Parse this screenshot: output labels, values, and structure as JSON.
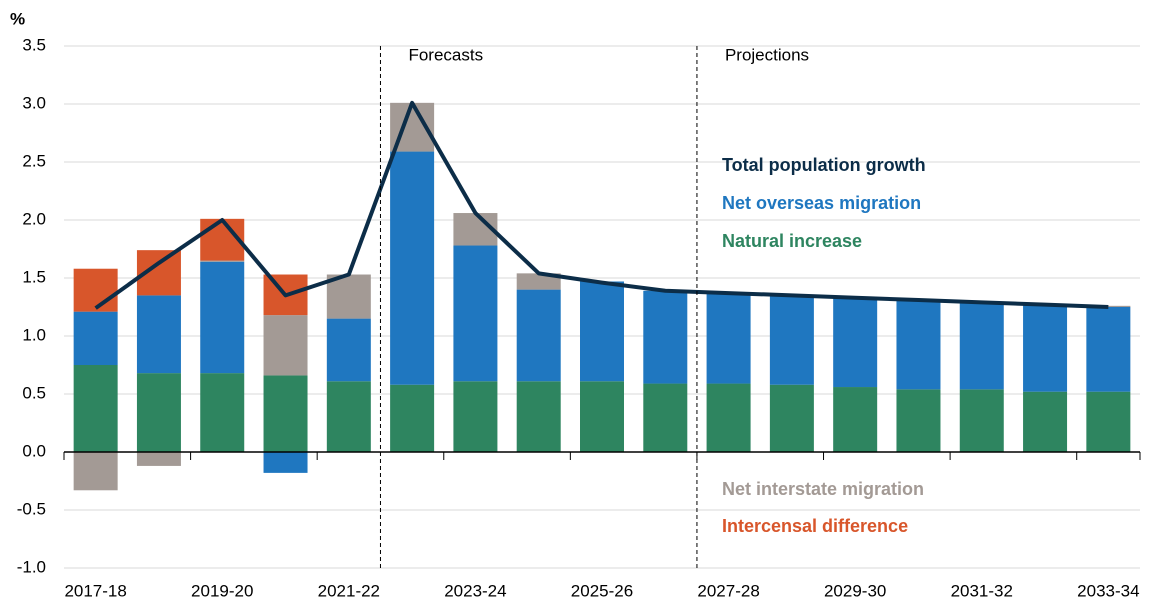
{
  "chart_data": {
    "type": "bar",
    "stacked": true,
    "y_label": "%",
    "categories": [
      "2017-18",
      null,
      "2019-20",
      null,
      "2021-22",
      null,
      "2023-24",
      null,
      "2025-26",
      null,
      "2027-28",
      null,
      "2029-30",
      null,
      "2031-32",
      null,
      "2033-34"
    ],
    "series": [
      {
        "name": "Natural increase",
        "color": "#2e8560",
        "values": [
          0.75,
          0.68,
          0.68,
          0.66,
          0.61,
          0.58,
          0.61,
          0.61,
          0.61,
          0.59,
          0.59,
          0.58,
          0.56,
          0.54,
          0.54,
          0.52,
          0.52
        ]
      },
      {
        "name": "Net overseas migration",
        "color": "#1f77c0",
        "values": [
          0.46,
          0.67,
          0.96,
          -0.18,
          0.54,
          2.01,
          1.17,
          0.79,
          0.86,
          0.8,
          0.78,
          0.77,
          0.77,
          0.77,
          0.75,
          0.75,
          0.73
        ]
      },
      {
        "name": "Net interstate migration",
        "color": "#a39a95",
        "values": [
          -0.33,
          -0.12,
          0.01,
          0.52,
          0.38,
          0.42,
          0.28,
          0.14,
          0,
          0,
          0,
          0,
          0,
          0,
          0,
          0,
          0.01
        ]
      },
      {
        "name": "Intercensal difference",
        "color": "#d8562b",
        "values": [
          0.37,
          0.39,
          0.36,
          0.35,
          0,
          0,
          0,
          0,
          0,
          0,
          0,
          0,
          0,
          0,
          0,
          0,
          0
        ]
      },
      {
        "name": "Total population growth",
        "type": "line",
        "color": "#0c2d48",
        "values": [
          1.24,
          1.63,
          2.0,
          1.35,
          1.53,
          3.01,
          2.06,
          1.54,
          1.46,
          1.39,
          1.37,
          1.35,
          1.33,
          1.31,
          1.29,
          1.27,
          1.25
        ]
      }
    ],
    "annotations": [
      "Forecasts",
      "Projections"
    ],
    "ylim": [
      -1.0,
      3.5
    ],
    "yticks": [
      {
        "value": -1,
        "label": "-1.0"
      },
      -0.5,
      {
        "value": 0,
        "label": "0.0"
      },
      0.5,
      {
        "value": 1,
        "label": "1.0"
      },
      1.5,
      {
        "value": 2,
        "label": "2.0"
      },
      2.5,
      {
        "value": 3,
        "label": "3.0"
      },
      3.5
    ],
    "grid": true
  }
}
